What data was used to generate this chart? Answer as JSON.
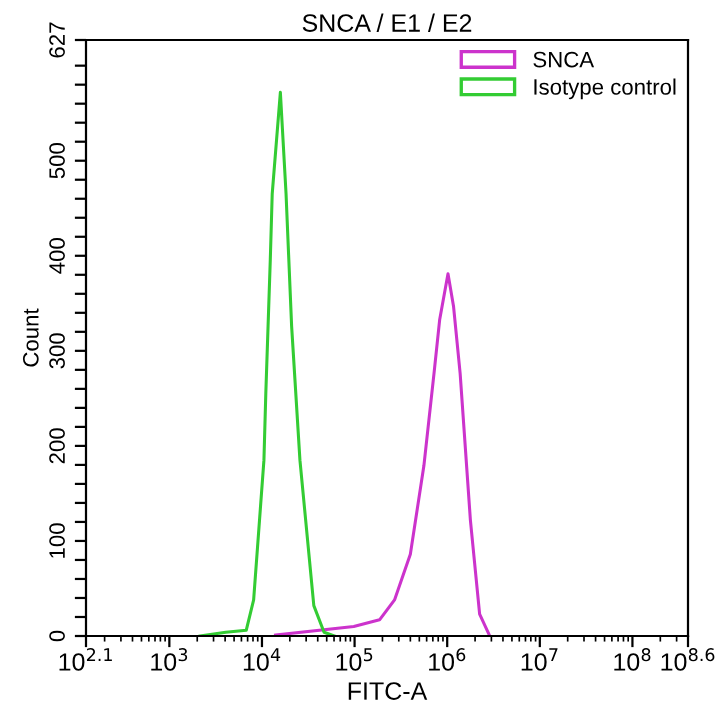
{
  "chart_data": {
    "type": "line",
    "title": "SNCA / E1 / E2",
    "xlabel": "FITC-A",
    "ylabel": "Count",
    "log": "x",
    "grid": false,
    "legend": "top right",
    "marker": "none",
    "line_style": "solid",
    "xlim": [
      125.9,
      398107170.5
    ],
    "xticks": [
      {
        "value": 125.9,
        "label": "10$^{2.1}$"
      },
      {
        "value": 1000,
        "label": "10$^{3}$"
      },
      {
        "value": 10000,
        "label": "10$^{4}$"
      },
      {
        "value": 100000,
        "label": "10$^{5}$"
      },
      {
        "value": 1000000,
        "label": "10$^{6}$"
      },
      {
        "value": 10000000,
        "label": "10$^{7}$"
      },
      {
        "value": 100000000,
        "label": "10$^{8}$"
      },
      {
        "value": 398107170.5,
        "label": "10$^{8.6}$"
      }
    ],
    "ylim": [
      0,
      627
    ],
    "yticks": [
      0,
      {
        "value": 20,
        "label": null
      },
      {
        "value": 40,
        "label": null
      },
      {
        "value": 60,
        "label": null
      },
      {
        "value": 80,
        "label": null
      },
      100,
      {
        "value": 120,
        "label": null
      },
      {
        "value": 140,
        "label": null
      },
      {
        "value": 160,
        "label": null
      },
      {
        "value": 180,
        "label": null
      },
      200,
      {
        "value": 220,
        "label": null
      },
      {
        "value": 240,
        "label": null
      },
      {
        "value": 260,
        "label": null
      },
      {
        "value": 280,
        "label": null
      },
      300,
      {
        "value": 320,
        "label": null
      },
      {
        "value": 340,
        "label": null
      },
      {
        "value": 360,
        "label": null
      },
      {
        "value": 380,
        "label": null
      },
      400,
      {
        "value": 420,
        "label": null
      },
      {
        "value": 440,
        "label": null
      },
      {
        "value": 460,
        "label": null
      },
      {
        "value": 480,
        "label": null
      },
      500,
      {
        "value": 520,
        "label": null
      },
      {
        "value": 540,
        "label": null
      },
      {
        "value": 560,
        "label": null
      },
      {
        "value": 580,
        "label": null
      },
      {
        "value": 600,
        "label": null
      },
      627
    ],
    "series": [
      {
        "name": "SNCA",
        "color": "#cc33cc",
        "x": [
          14000,
          98000,
          186000,
          270000,
          400000,
          560000,
          720000,
          830000,
          1020000,
          1170000,
          1380000,
          1780000,
          2240000,
          2880000
        ],
        "values": [
          1,
          10,
          17,
          38,
          86,
          179,
          276,
          333,
          381,
          347,
          276,
          122,
          23,
          0
        ]
      },
      {
        "name": "Isotype control",
        "color": "#33cc33",
        "x": [
          2140,
          4070,
          6760,
          8130,
          10500,
          11000,
          12300,
          12900,
          15800,
          18200,
          20900,
          25700,
          36300,
          46800,
          60300
        ],
        "values": [
          0,
          4,
          6,
          38,
          185,
          255,
          396,
          465,
          572,
          465,
          326,
          185,
          32,
          4,
          0
        ]
      }
    ]
  }
}
